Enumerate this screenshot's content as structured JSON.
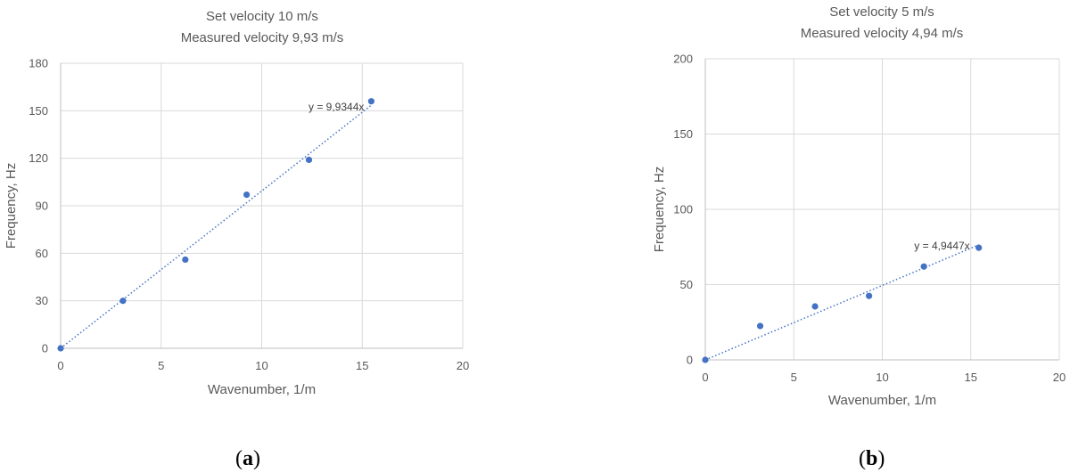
{
  "chart_data": [
    {
      "type": "scatter",
      "panel_label": "a",
      "title_lines": [
        "Set velocity 10 m/s",
        "Measured velocity 9,93 m/s"
      ],
      "xlabel": "Wavenumber, 1/m",
      "ylabel": "Frequency, Hz",
      "xlim": [
        0,
        20
      ],
      "ylim": [
        0,
        180
      ],
      "xticks": [
        0,
        5,
        10,
        15,
        20
      ],
      "yticks": [
        0,
        30,
        60,
        90,
        120,
        150,
        180
      ],
      "grid": true,
      "points": [
        {
          "x": 0,
          "y": 0
        },
        {
          "x": 3.1,
          "y": 30
        },
        {
          "x": 6.2,
          "y": 56
        },
        {
          "x": 9.25,
          "y": 97
        },
        {
          "x": 12.35,
          "y": 119
        },
        {
          "x": 15.45,
          "y": 156
        }
      ],
      "trendline": {
        "slope": 9.9344,
        "x_start": 0,
        "x_end": 15.45,
        "label": "y = 9,9344x"
      },
      "marker_color": "#4472c4"
    },
    {
      "type": "scatter",
      "panel_label": "b",
      "title_lines": [
        "Set velocity 5 m/s",
        "Measured velocity 4,94 m/s"
      ],
      "xlabel": "Wavenumber, 1/m",
      "ylabel": "Frequency, Hz",
      "xlim": [
        0,
        20
      ],
      "ylim": [
        0,
        200
      ],
      "xticks": [
        0,
        5,
        10,
        15,
        20
      ],
      "yticks": [
        0,
        50,
        100,
        150,
        200
      ],
      "grid": true,
      "points": [
        {
          "x": 0,
          "y": 0
        },
        {
          "x": 3.1,
          "y": 22.5
        },
        {
          "x": 6.2,
          "y": 35.5
        },
        {
          "x": 9.25,
          "y": 42.5
        },
        {
          "x": 12.35,
          "y": 62
        },
        {
          "x": 15.45,
          "y": 74.5
        }
      ],
      "trendline": {
        "slope": 4.9447,
        "x_start": 0,
        "x_end": 15.45,
        "label": "y = 4,9447x"
      },
      "marker_color": "#4472c4"
    }
  ]
}
